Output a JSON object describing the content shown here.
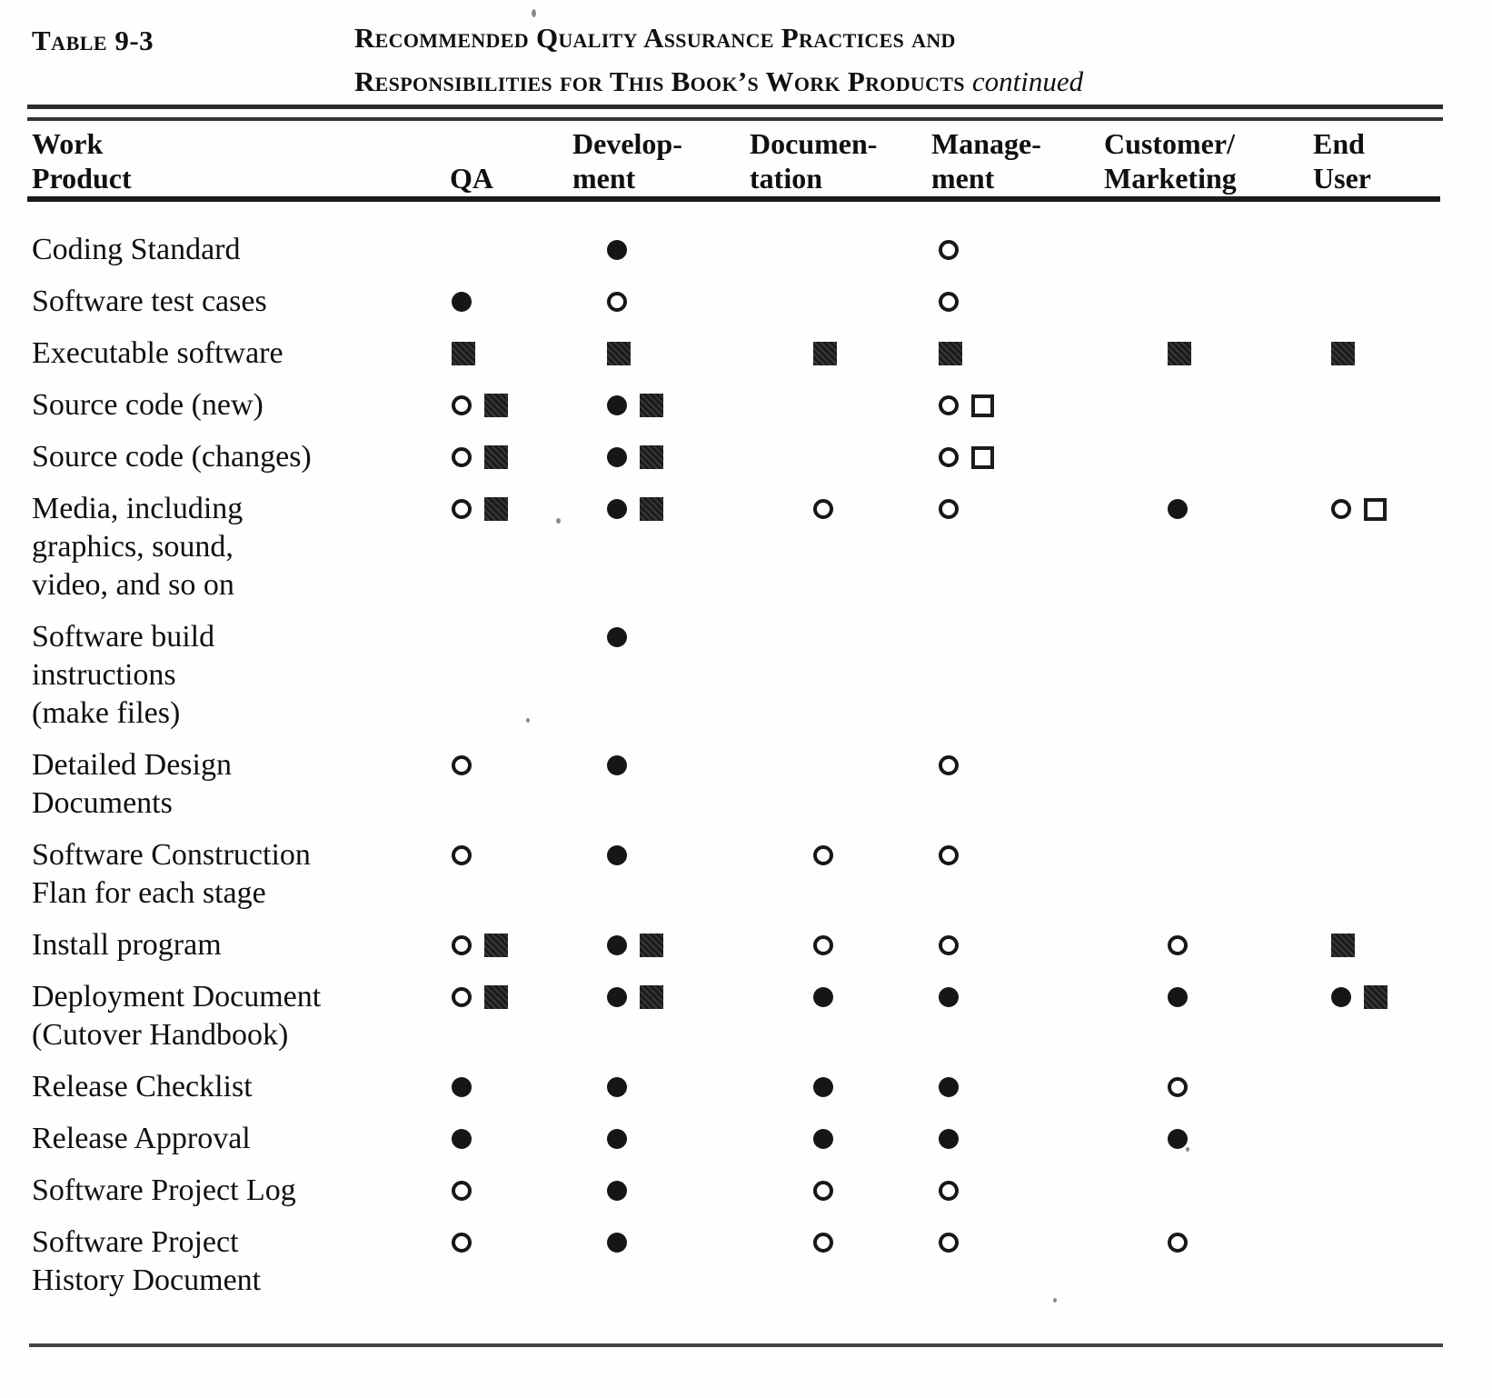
{
  "document": {
    "table_label": "Table 9-3",
    "caption_line1": "Recommended Quality Assurance Practices and",
    "caption_line2": "Responsibilities for This Book’s Work Products",
    "caption_continued": "continued"
  },
  "symbols": {
    "filled-circle": "●",
    "open-circle": "○",
    "filled-square": "■",
    "open-square": "□"
  },
  "table": {
    "columns": [
      {
        "id": "work-product",
        "lines": [
          "Work",
          "Product"
        ]
      },
      {
        "id": "qa",
        "lines": [
          "",
          "QA"
        ]
      },
      {
        "id": "development",
        "lines": [
          "Develop-",
          "ment"
        ]
      },
      {
        "id": "documentation",
        "lines": [
          "Documen-",
          "tation"
        ]
      },
      {
        "id": "management",
        "lines": [
          "Manage-",
          "ment"
        ]
      },
      {
        "id": "customer-marketing",
        "lines": [
          "Customer/",
          "Marketing"
        ]
      },
      {
        "id": "end-user",
        "lines": [
          "End",
          "User"
        ]
      }
    ],
    "rows": [
      {
        "name_lines": [
          "Coding Standard"
        ],
        "cells": [
          [],
          [
            "filled-circle"
          ],
          [],
          [
            "open-circle"
          ],
          [],
          []
        ]
      },
      {
        "name_lines": [
          "Software test cases"
        ],
        "cells": [
          [
            "filled-circle"
          ],
          [
            "open-circle"
          ],
          [],
          [
            "open-circle"
          ],
          [],
          []
        ]
      },
      {
        "name_lines": [
          "Executable software"
        ],
        "cells": [
          [
            "filled-square"
          ],
          [
            "filled-square"
          ],
          [
            "filled-square"
          ],
          [
            "filled-square"
          ],
          [
            "filled-square"
          ],
          [
            "filled-square"
          ]
        ]
      },
      {
        "name_lines": [
          "Source code (new)"
        ],
        "cells": [
          [
            "open-circle",
            "filled-square"
          ],
          [
            "filled-circle",
            "filled-square"
          ],
          [],
          [
            "open-circle",
            "open-square"
          ],
          [],
          []
        ]
      },
      {
        "name_lines": [
          "Source code (changes)"
        ],
        "cells": [
          [
            "open-circle",
            "filled-square"
          ],
          [
            "filled-circle",
            "filled-square"
          ],
          [],
          [
            "open-circle",
            "open-square"
          ],
          [],
          []
        ]
      },
      {
        "name_lines": [
          "Media, including",
          "graphics, sound,",
          "video, and so on"
        ],
        "cells": [
          [
            "open-circle",
            "filled-square"
          ],
          [
            "filled-circle",
            "filled-square"
          ],
          [
            "open-circle"
          ],
          [
            "open-circle"
          ],
          [
            "filled-circle"
          ],
          [
            "open-circle",
            "open-square"
          ]
        ]
      },
      {
        "name_lines": [
          "Software build",
          "instructions",
          "(make files)"
        ],
        "cells": [
          [],
          [
            "filled-circle"
          ],
          [],
          [],
          [],
          []
        ]
      },
      {
        "name_lines": [
          "Detailed Design",
          "Documents"
        ],
        "cells": [
          [
            "open-circle"
          ],
          [
            "filled-circle"
          ],
          [],
          [
            "open-circle"
          ],
          [],
          []
        ]
      },
      {
        "name_lines": [
          "Software Construction",
          "Flan for each stage"
        ],
        "cells": [
          [
            "open-circle"
          ],
          [
            "filled-circle"
          ],
          [
            "open-circle"
          ],
          [
            "open-circle"
          ],
          [],
          []
        ]
      },
      {
        "name_lines": [
          "Install program"
        ],
        "cells": [
          [
            "open-circle",
            "filled-square"
          ],
          [
            "filled-circle",
            "filled-square"
          ],
          [
            "open-circle"
          ],
          [
            "open-circle"
          ],
          [
            "open-circle"
          ],
          [
            "filled-square"
          ]
        ]
      },
      {
        "name_lines": [
          "Deployment Document",
          "(Cutover Handbook)"
        ],
        "cells": [
          [
            "open-circle",
            "filled-square"
          ],
          [
            "filled-circle",
            "filled-square"
          ],
          [
            "filled-circle"
          ],
          [
            "filled-circle"
          ],
          [
            "filled-circle"
          ],
          [
            "filled-circle",
            "filled-square"
          ]
        ]
      },
      {
        "name_lines": [
          "Release Checklist"
        ],
        "cells": [
          [
            "filled-circle"
          ],
          [
            "filled-circle"
          ],
          [
            "filled-circle"
          ],
          [
            "filled-circle"
          ],
          [
            "open-circle"
          ],
          []
        ]
      },
      {
        "name_lines": [
          "Release Approval"
        ],
        "cells": [
          [
            "filled-circle"
          ],
          [
            "filled-circle"
          ],
          [
            "filled-circle"
          ],
          [
            "filled-circle"
          ],
          [
            "filled-circle"
          ],
          []
        ]
      },
      {
        "name_lines": [
          "Software Project Log"
        ],
        "cells": [
          [
            "open-circle"
          ],
          [
            "filled-circle"
          ],
          [
            "open-circle"
          ],
          [
            "open-circle"
          ],
          [],
          []
        ]
      },
      {
        "name_lines": [
          "Software Project",
          "History Document"
        ],
        "cells": [
          [
            "open-circle"
          ],
          [
            "filled-circle"
          ],
          [
            "open-circle"
          ],
          [
            "open-circle"
          ],
          [
            "open-circle"
          ],
          []
        ]
      }
    ]
  }
}
